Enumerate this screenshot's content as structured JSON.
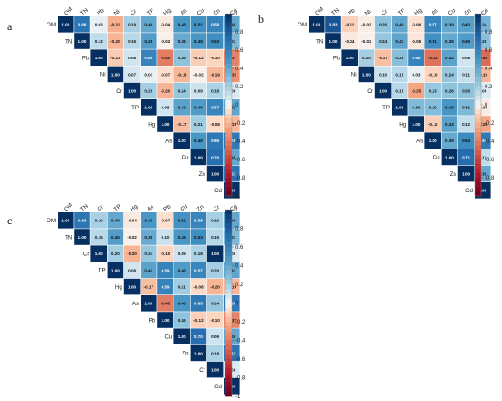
{
  "chart_data": [
    {
      "type": "heatmap",
      "panel_label": "a",
      "variables": [
        "OM",
        "TN",
        "Pb",
        "Ni",
        "Cr",
        "TP",
        "Hg",
        "As",
        "Cu",
        "Zn",
        "Cd"
      ],
      "matrix": [
        [
          1.0,
          0.66,
          0.03,
          -0.22,
          0.19,
          0.4,
          -0.04,
          0.48,
          0.51,
          0.58,
          0.4
        ],
        [
          null,
          1.0,
          0.13,
          -0.2,
          0.15,
          0.45,
          -0.02,
          0.38,
          0.48,
          0.53,
          0.31
        ],
        [
          null,
          null,
          1.0,
          -0.13,
          0.08,
          0.59,
          -0.4,
          0.26,
          -0.12,
          -0.1,
          -0.37
        ],
        [
          null,
          null,
          null,
          1.0,
          0.07,
          0.03,
          -0.07,
          -0.19,
          -0.02,
          -0.19,
          -0.32
        ],
        [
          null,
          null,
          null,
          null,
          1.0,
          0.2,
          -0.2,
          0.24,
          0.09,
          0.18,
          0.06
        ],
        [
          null,
          null,
          null,
          null,
          null,
          1.0,
          0.08,
          0.42,
          0.46,
          0.57,
          0.41
        ],
        [
          null,
          null,
          null,
          null,
          null,
          null,
          1.0,
          -0.17,
          0.21,
          -0.08,
          -0.19
        ],
        [
          null,
          null,
          null,
          null,
          null,
          null,
          null,
          1.0,
          0.48,
          0.65,
          0.65
        ],
        [
          null,
          null,
          null,
          null,
          null,
          null,
          null,
          null,
          1.0,
          0.7,
          0.4
        ],
        [
          null,
          null,
          null,
          null,
          null,
          null,
          null,
          null,
          null,
          1.0,
          0.67
        ],
        [
          null,
          null,
          null,
          null,
          null,
          null,
          null,
          null,
          null,
          null,
          1.0
        ]
      ]
    },
    {
      "type": "heatmap",
      "panel_label": "b",
      "variables": [
        "OM",
        "TN",
        "Pb",
        "Ni",
        "Cr",
        "TP",
        "Hg",
        "As",
        "Cu",
        "Zn",
        "Cd"
      ],
      "matrix": [
        [
          1.0,
          0.83,
          -0.11,
          -0.03,
          0.26,
          0.4,
          -0.06,
          0.57,
          0.39,
          0.43,
          0.34
        ],
        [
          null,
          1.0,
          -0.04,
          -0.02,
          0.24,
          0.41,
          -0.05,
          0.51,
          0.39,
          0.46,
          0.28
        ],
        [
          null,
          null,
          1.0,
          0.2,
          -0.17,
          0.28,
          0.59,
          -0.43,
          0.42,
          0.08,
          -0.46
        ],
        [
          null,
          null,
          null,
          1.0,
          0.1,
          0.15,
          0.03,
          -0.1,
          0.24,
          0.11,
          -0.19
        ],
        [
          null,
          null,
          null,
          null,
          1.0,
          0.15,
          -0.25,
          0.23,
          0.26,
          0.26,
          0.06
        ],
        [
          null,
          null,
          null,
          null,
          null,
          1.0,
          0.3,
          0.29,
          0.49,
          0.31,
          -0.03
        ],
        [
          null,
          null,
          null,
          null,
          null,
          null,
          1.0,
          -0.12,
          0.43,
          0.12,
          -0.25
        ],
        [
          null,
          null,
          null,
          null,
          null,
          null,
          null,
          1.0,
          0.39,
          0.54,
          0.64
        ],
        [
          null,
          null,
          null,
          null,
          null,
          null,
          null,
          null,
          1.0,
          0.71,
          0.12
        ],
        [
          null,
          null,
          null,
          null,
          null,
          null,
          null,
          null,
          null,
          1.0,
          0.39
        ],
        [
          null,
          null,
          null,
          null,
          null,
          null,
          null,
          null,
          null,
          null,
          1.0
        ]
      ]
    },
    {
      "type": "heatmap",
      "panel_label": "c",
      "variables": [
        "OM",
        "TN",
        "Cr",
        "TP",
        "Hg",
        "As",
        "Pb",
        "Cu",
        "Zn",
        "Cr",
        "Cd"
      ],
      "matrix": [
        [
          1.0,
          0.66,
          0.19,
          0.4,
          -0.04,
          0.48,
          -0.07,
          0.51,
          0.58,
          0.19,
          0.4
        ],
        [
          null,
          1.0,
          0.15,
          0.45,
          -0.02,
          0.38,
          0.1,
          0.48,
          0.53,
          0.15,
          0.31
        ],
        [
          null,
          null,
          1.0,
          0.2,
          -0.2,
          0.24,
          -0.1,
          0.09,
          0.18,
          1.0,
          0.06
        ],
        [
          null,
          null,
          null,
          1.0,
          0.08,
          0.42,
          0.59,
          0.46,
          0.57,
          0.2,
          0.41
        ],
        [
          null,
          null,
          null,
          null,
          1.0,
          -0.17,
          0.59,
          0.21,
          -0.08,
          -0.2,
          -0.19
        ],
        [
          null,
          null,
          null,
          null,
          null,
          1.0,
          -0.4,
          0.48,
          0.65,
          0.24,
          0.65
        ],
        [
          null,
          null,
          null,
          null,
          null,
          null,
          1.0,
          0.26,
          -0.12,
          -0.1,
          -0.37
        ],
        [
          null,
          null,
          null,
          null,
          null,
          null,
          null,
          1.0,
          0.7,
          0.09,
          0.4
        ],
        [
          null,
          null,
          null,
          null,
          null,
          null,
          null,
          null,
          1.0,
          0.18,
          0.67
        ],
        [
          null,
          null,
          null,
          null,
          null,
          null,
          null,
          null,
          null,
          1.0,
          0.06
        ],
        [
          null,
          null,
          null,
          null,
          null,
          null,
          null,
          null,
          null,
          null,
          1.0
        ]
      ]
    }
  ],
  "colorbar": {
    "range": [
      -1,
      1
    ],
    "ticks": [
      "1",
      "0.8",
      "0.6",
      "0.4",
      "0.2",
      "0",
      "-0.2",
      "-0.4",
      "-0.6",
      "-0.8",
      "-1"
    ],
    "colors": {
      "neg": "#67001f",
      "mid": "#f7f7f7",
      "pos": "#053061"
    }
  }
}
